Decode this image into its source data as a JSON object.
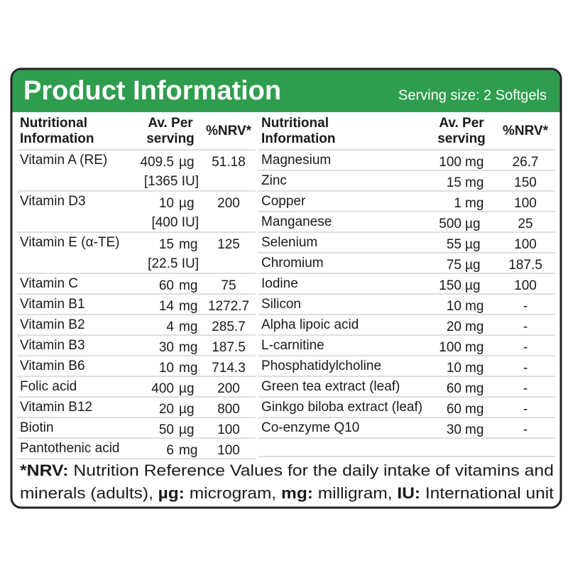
{
  "header": {
    "title": "Product Information",
    "serving": "Serving size: 2 Softgels"
  },
  "left": {
    "header": {
      "name": [
        "Nutritional",
        "Information"
      ],
      "amount": [
        "Av. Per",
        "serving"
      ],
      "nrv": "%NRV*"
    },
    "rows": [
      {
        "name": "Vitamin A (RE)",
        "amount": "409.5",
        "unit": "µg",
        "nrv": "51.18",
        "iu": "[1365 IU]"
      },
      {
        "name": "Vitamin D3",
        "amount": "10",
        "unit": "µg",
        "nrv": "200",
        "iu": "[400 IU]"
      },
      {
        "name": "Vitamin E (α-TE)",
        "amount": "15",
        "unit": "mg",
        "nrv": "125",
        "iu": "[22.5 IU]"
      },
      {
        "name": "Vitamin C",
        "amount": "60",
        "unit": "mg",
        "nrv": "75"
      },
      {
        "name": "Vitamin B1",
        "amount": "14",
        "unit": "mg",
        "nrv": "1272.7"
      },
      {
        "name": "Vitamin B2",
        "amount": "4",
        "unit": "mg",
        "nrv": "285.7"
      },
      {
        "name": "Vitamin B3",
        "amount": "30",
        "unit": "mg",
        "nrv": "187.5"
      },
      {
        "name": "Vitamin B6",
        "amount": "10",
        "unit": "mg",
        "nrv": "714.3"
      },
      {
        "name": "Folic acid",
        "amount": "400",
        "unit": "µg",
        "nrv": "200"
      },
      {
        "name": "Vitamin B12",
        "amount": "20",
        "unit": "µg",
        "nrv": "800"
      },
      {
        "name": "Biotin",
        "amount": "50",
        "unit": "µg",
        "nrv": "100"
      },
      {
        "name": "Pantothenic acid",
        "amount": "6",
        "unit": "mg",
        "nrv": "100"
      }
    ]
  },
  "right": {
    "header": {
      "name": [
        "Nutritional",
        "Information"
      ],
      "amount": [
        "Av. Per",
        "serving"
      ],
      "nrv": "%NRV*"
    },
    "rows": [
      {
        "name": "Magnesium",
        "amount": "100",
        "unit": "mg",
        "nrv": "26.7"
      },
      {
        "name": "Zinc",
        "amount": "15",
        "unit": "mg",
        "nrv": "150"
      },
      {
        "name": "Copper",
        "amount": "1",
        "unit": "mg",
        "nrv": "100"
      },
      {
        "name": "Manganese",
        "amount": "500",
        "unit": "µg",
        "nrv": "25"
      },
      {
        "name": "Selenium",
        "amount": "55",
        "unit": "µg",
        "nrv": "100"
      },
      {
        "name": "Chromium",
        "amount": "75",
        "unit": "µg",
        "nrv": "187.5"
      },
      {
        "name": "Iodine",
        "amount": "150",
        "unit": "µg",
        "nrv": "100"
      },
      {
        "name": "Silicon",
        "amount": "10",
        "unit": "mg",
        "nrv": "-"
      },
      {
        "name": "Alpha lipoic acid",
        "amount": "20",
        "unit": "mg",
        "nrv": "-"
      },
      {
        "name": "L-carnitine",
        "amount": "100",
        "unit": "mg",
        "nrv": "-"
      },
      {
        "name": "Phosphatidylcholine",
        "amount": "10",
        "unit": "mg",
        "nrv": "-"
      },
      {
        "name": "Green tea extract (leaf)",
        "amount": "60",
        "unit": "mg",
        "nrv": "-"
      },
      {
        "name": "Ginkgo biloba extract (leaf)",
        "amount": "60",
        "unit": "mg",
        "nrv": "-"
      },
      {
        "name": "Co-enzyme Q10",
        "amount": "30",
        "unit": "mg",
        "nrv": "-"
      }
    ]
  },
  "footer": {
    "lines": [
      [
        {
          "text": "*NRV:",
          "bold": true
        },
        {
          "text": " Nutrition Reference Values for the daily intake of vitamins and",
          "bold": false
        }
      ],
      [
        {
          "text": "minerals (adults), ",
          "bold": false
        },
        {
          "text": "µg:",
          "bold": true
        },
        {
          "text": " microgram, ",
          "bold": false
        },
        {
          "text": "mg:",
          "bold": true
        },
        {
          "text": " milligram, ",
          "bold": false
        },
        {
          "text": "IU:",
          "bold": true
        },
        {
          "text": " International unit",
          "bold": false
        }
      ]
    ]
  }
}
